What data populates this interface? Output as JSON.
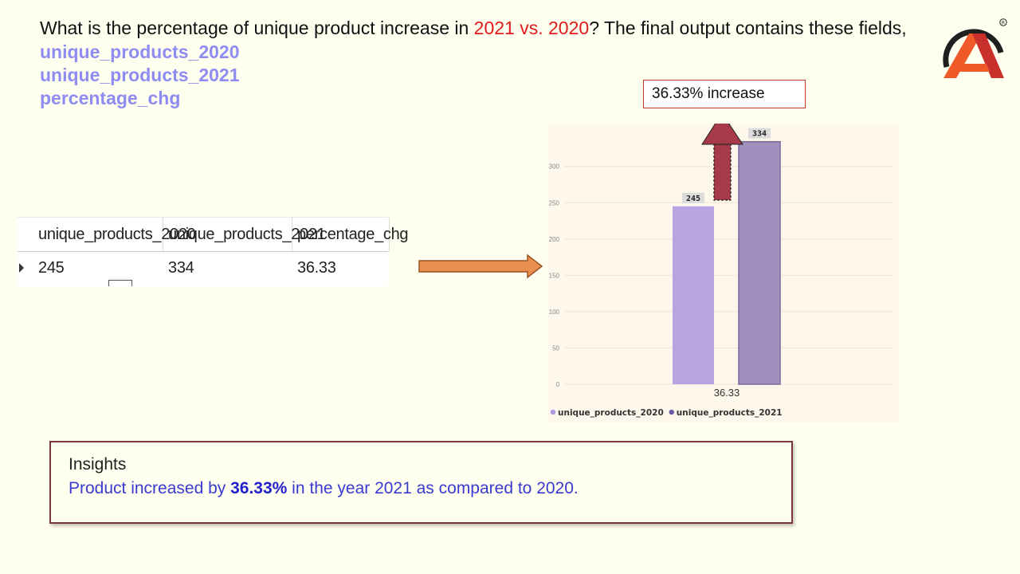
{
  "question": {
    "prefix": "What is the percentage of unique product increase in ",
    "highlight": "2021 vs. 2020",
    "suffix": "? The final output contains these fields,",
    "fields": [
      "unique_products_2020",
      "unique_products_2021",
      "percentage_chg"
    ]
  },
  "result_grid": {
    "columns": [
      "unique_products_2020",
      "unique_products_2021",
      "percentage_chg"
    ],
    "rows": [
      [
        "245",
        "334",
        "36.33"
      ]
    ]
  },
  "callout": {
    "text": "36.33% increase"
  },
  "insights": {
    "title": "Insights",
    "before": "Product increased by ",
    "value": "36.33%",
    "after": " in the year 2021 as compared to 2020."
  },
  "colors": {
    "question_highlight": "#e01b1b",
    "field_text": "#8e8cf0",
    "bar_2020": "#b7a4e0",
    "bar_2021": "#a090bd",
    "arrow_up": "#a63a48",
    "arrow_right": "#e8914e",
    "insight_text": "#3a3ad0",
    "logo_orange": "#f05a28",
    "logo_red": "#c9302c"
  },
  "icons": {
    "logo": "a-letter-logo-icon",
    "registered": "registered-mark"
  },
  "chart_data": {
    "type": "bar",
    "categories": [
      "36.33"
    ],
    "series": [
      {
        "name": "unique_products_2020",
        "values": [
          245
        ]
      },
      {
        "name": "unique_products_2021",
        "values": [
          334
        ]
      }
    ],
    "data_labels": [
      "245",
      "334"
    ],
    "yticks": [
      0,
      50,
      100,
      150,
      200,
      250,
      300
    ],
    "ylim": [
      0,
      350
    ],
    "grid": true,
    "legend": "bottom-left"
  }
}
